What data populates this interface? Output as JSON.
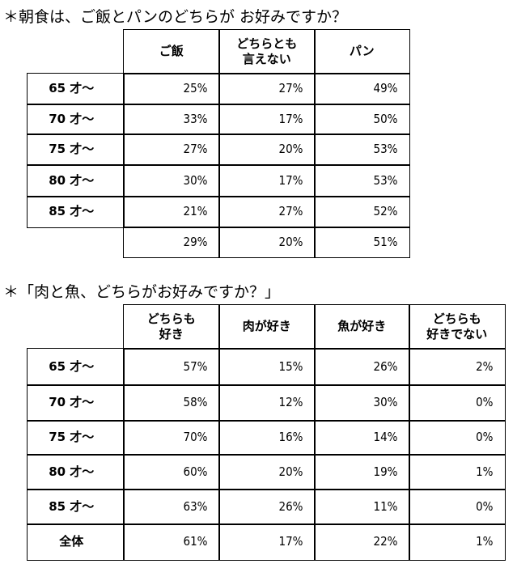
{
  "table1": {
    "title": "＊朝食は、ご飯とパンのどちらが お好みですか？",
    "headers": [
      "ご飯",
      "どちらとも\n言えない",
      "パン"
    ],
    "rows": [
      {
        "label": "65 才～",
        "values": [
          "25%",
          "27%",
          "49%"
        ]
      },
      {
        "label": "70 才～",
        "values": [
          "33%",
          "17%",
          "50%"
        ]
      },
      {
        "label": "75 才～",
        "values": [
          "27%",
          "20%",
          "53%"
        ]
      },
      {
        "label": "80 才～",
        "values": [
          "30%",
          "17%",
          "53%"
        ]
      },
      {
        "label": "85 才～",
        "values": [
          "21%",
          "27%",
          "52%"
        ]
      },
      {
        "label": "",
        "values": [
          "29%",
          "20%",
          "51%"
        ]
      }
    ]
  },
  "table2": {
    "title": "＊「肉と魚、どちらがお好みですか？」",
    "headers": [
      "どちらも\n好き",
      "肉が好き",
      "魚が好き",
      "どちらも\n好きでない"
    ],
    "rows": [
      {
        "label": "65 才～",
        "values": [
          "57%",
          "15%",
          "26%",
          "2%"
        ]
      },
      {
        "label": "70 才～",
        "values": [
          "58%",
          "12%",
          "30%",
          "0%"
        ]
      },
      {
        "label": "75 才～",
        "values": [
          "70%",
          "16%",
          "14%",
          "0%"
        ]
      },
      {
        "label": "80 才～",
        "values": [
          "60%",
          "20%",
          "19%",
          "1%"
        ]
      },
      {
        "label": "85 才～",
        "values": [
          "63%",
          "26%",
          "11%",
          "0%"
        ]
      },
      {
        "label": "全体",
        "values": [
          "61%",
          "17%",
          "22%",
          "1%"
        ]
      }
    ]
  }
}
